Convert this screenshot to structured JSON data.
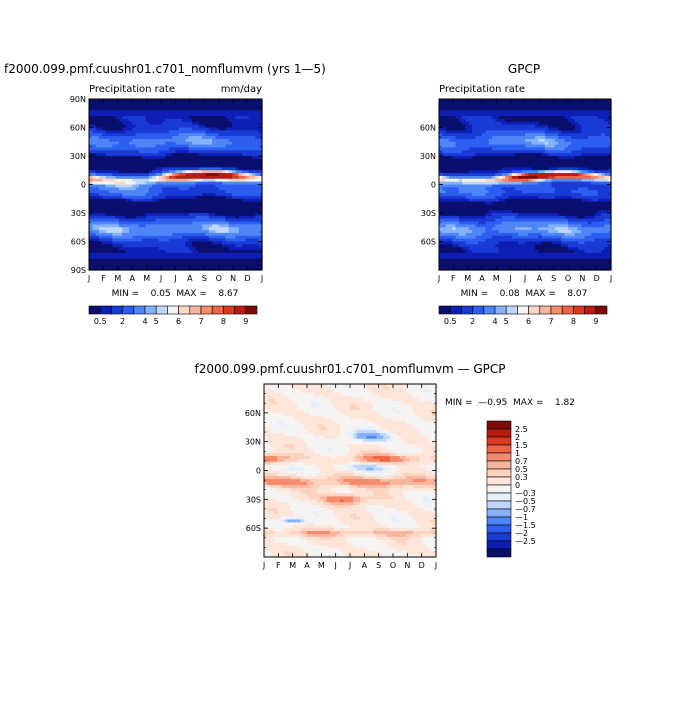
{
  "colors": {
    "seq": [
      "#0a0f6e",
      "#0d1fb4",
      "#1a3ad6",
      "#2c5ef0",
      "#4f86f7",
      "#86b2fb",
      "#bfd7fd",
      "#f6f4f2",
      "#fcd9c7",
      "#f8b59e",
      "#f48b6d",
      "#ee6444",
      "#dc3a21",
      "#b71c10",
      "#7e0b06"
    ],
    "div": [
      "#0a0f6e",
      "#0d1fb4",
      "#1a3ad6",
      "#2c5ef0",
      "#4f86f7",
      "#86b2fb",
      "#bfd7fd",
      "#e6f0fd",
      "#f6f4f2",
      "#fde6d9",
      "#fcd3be",
      "#f8b59e",
      "#f48b6d",
      "#ee6444",
      "#dc3a21",
      "#b71c10",
      "#7e0b06"
    ]
  },
  "chart_data": [
    {
      "type": "heatmap",
      "title": "f2000.099.pmf.cuushr01.c701_nomflumvm (yrs 1—5)",
      "subtitle_left": "Precipitation rate",
      "subtitle_right": "mm/day",
      "x_ticks": [
        "J",
        "F",
        "M",
        "A",
        "M",
        "J",
        "J",
        "A",
        "S",
        "O",
        "N",
        "D",
        "J"
      ],
      "y_ticks": [
        "90N",
        "60N",
        "30N",
        "0",
        "30S",
        "60S",
        "90S"
      ],
      "y_values": [
        90,
        60,
        30,
        0,
        -30,
        -60,
        -90
      ],
      "stats": "MIN =    0.05  MAX =    8.67",
      "colorbar_labels": [
        "0.5",
        "2",
        "4",
        "5",
        "6",
        "7",
        "8",
        "9"
      ],
      "variant": "model"
    },
    {
      "type": "heatmap",
      "title": "GPCP",
      "subtitle_left": "Precipitation rate",
      "subtitle_right": "",
      "x_ticks": [
        "J",
        "F",
        "M",
        "A",
        "M",
        "J",
        "J",
        "A",
        "S",
        "O",
        "N",
        "D",
        "J"
      ],
      "y_ticks": [
        "60N",
        "30N",
        "0",
        "30S",
        "60S"
      ],
      "y_values": [
        60,
        30,
        0,
        -30,
        -60
      ],
      "stats": "MIN =    0.08  MAX =    8.07",
      "colorbar_labels": [
        "0.5",
        "2",
        "4",
        "5",
        "6",
        "7",
        "8",
        "9"
      ],
      "variant": "obs"
    },
    {
      "type": "heatmap",
      "title": "f2000.099.pmf.cuushr01.c701_nomflumvm — GPCP",
      "x_ticks": [
        "J",
        "F",
        "M",
        "A",
        "M",
        "J",
        "J",
        "A",
        "S",
        "O",
        "N",
        "D",
        "J"
      ],
      "y_ticks": [
        "60N",
        "30N",
        "0",
        "30S",
        "60S"
      ],
      "y_values": [
        60,
        30,
        0,
        -30,
        -60
      ],
      "stats": "MIN =  —0.95  MAX =    1.82",
      "colorbar_labels": [
        "2.5",
        "2",
        "1.5",
        "1",
        "0.7",
        "0.5",
        "0.3",
        "0",
        "—0.3",
        "—0.5",
        "—0.7",
        "—1",
        "—1.5",
        "—2",
        "—2.5"
      ]
    }
  ]
}
